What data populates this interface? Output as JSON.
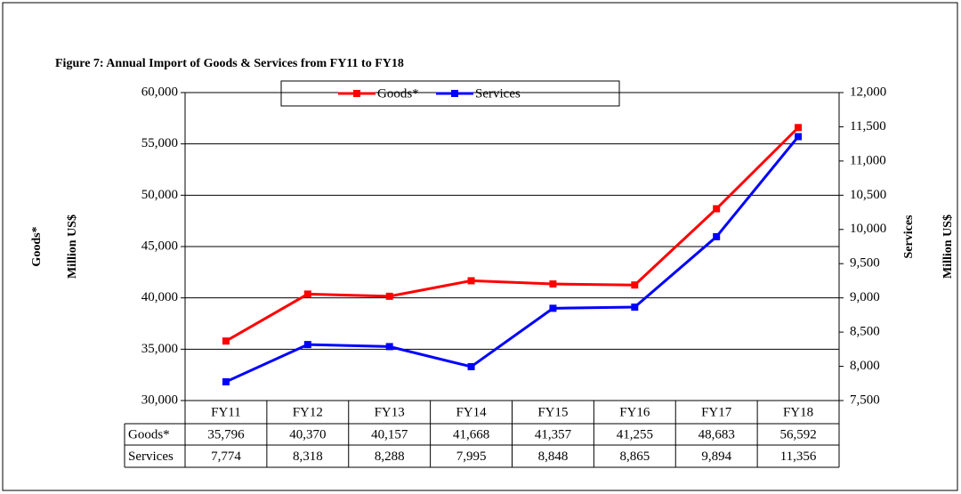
{
  "chart_data": {
    "type": "line",
    "title": "Figure  7: Annual Import of Goods & Services  from  FY11  to FY18",
    "categories": [
      "FY11",
      "FY12",
      "FY13",
      "FY14",
      "FY15",
      "FY16",
      "FY17",
      "FY18"
    ],
    "series": [
      {
        "name": "Goods*",
        "color": "#ff0000",
        "values": [
          35796,
          40370,
          40157,
          41668,
          41357,
          41255,
          48683,
          56592
        ],
        "value_labels": [
          "35,796",
          "40,370",
          "40,157",
          "41,668",
          "41,357",
          "41,255",
          "48,683",
          "56,592"
        ]
      },
      {
        "name": "Services",
        "color": "#0000ff",
        "axis": "y2",
        "values": [
          7774,
          8318,
          8288,
          7995,
          8848,
          8865,
          9894,
          11356
        ],
        "value_labels": [
          "7,774",
          "8,318",
          "8,288",
          "7,995",
          "8,848",
          "8,865",
          "9,894",
          "11,356"
        ]
      }
    ],
    "ylabel": "Million US$",
    "y2label": "Million US$",
    "ylim": [
      30000,
      60000
    ],
    "yticks": [
      {
        "value": 30000,
        "label": "30,000"
      },
      {
        "value": 35000,
        "label": "35,000"
      },
      {
        "value": 40000,
        "label": "40,000"
      },
      {
        "value": 45000,
        "label": "45,000"
      },
      {
        "value": 50000,
        "label": "50,000"
      },
      {
        "value": 55000,
        "label": "55,000"
      },
      {
        "value": 60000,
        "label": "60,000"
      }
    ],
    "y2lim": [
      7500,
      12000
    ],
    "y2ticks": [
      {
        "value": 7500,
        "label": "7,500"
      },
      {
        "value": 8000,
        "label": "8,000"
      },
      {
        "value": 8500,
        "label": "8,500"
      },
      {
        "value": 9000,
        "label": "9,000"
      },
      {
        "value": 9500,
        "label": "9,500"
      },
      {
        "value": 10000,
        "label": "10,000"
      },
      {
        "value": 10500,
        "label": "10,500"
      },
      {
        "value": 11000,
        "label": "11,000"
      },
      {
        "value": 11500,
        "label": "11,500"
      },
      {
        "value": 12000,
        "label": "12,000"
      }
    ],
    "grid": true,
    "legend": "top"
  }
}
